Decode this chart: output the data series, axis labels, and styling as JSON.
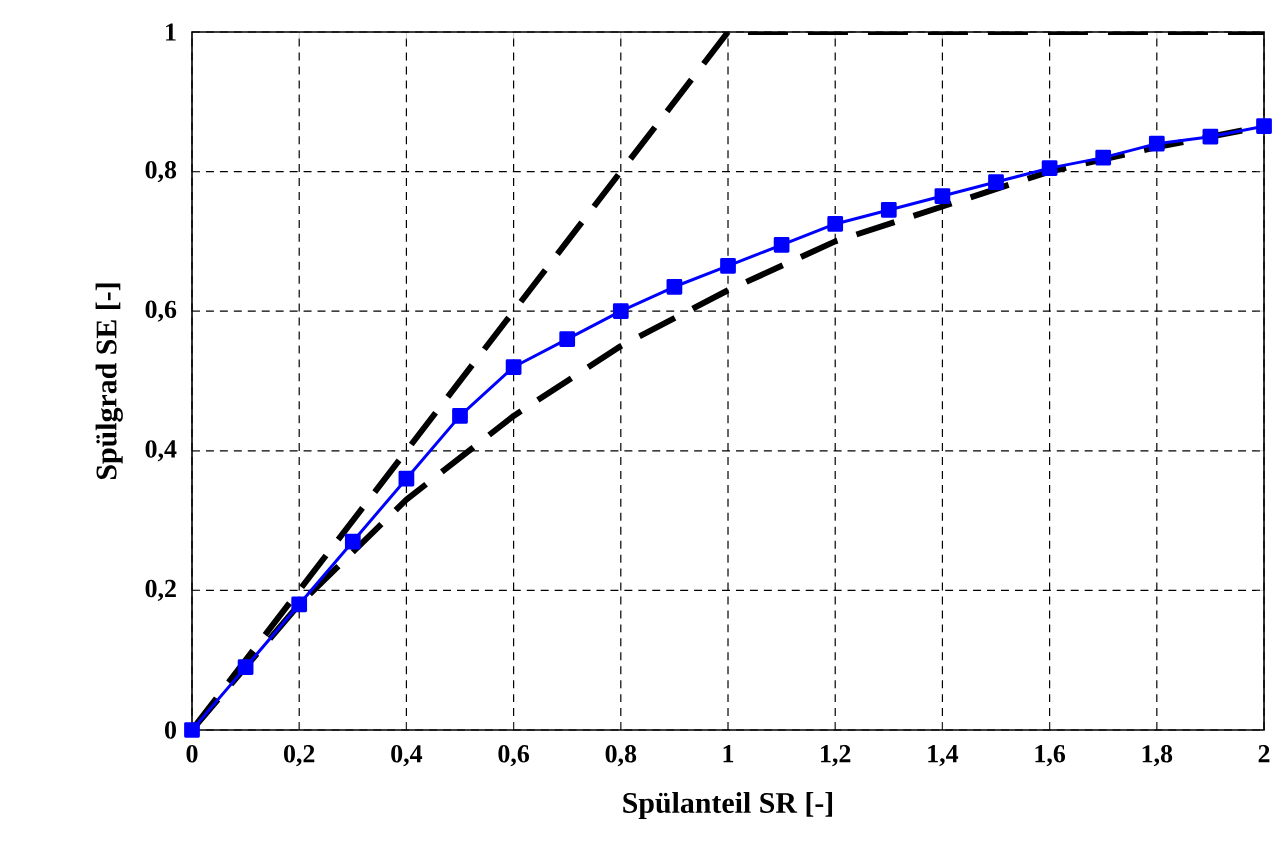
{
  "chart_data": {
    "type": "line",
    "xlabel": "Spülanteil SR [-]",
    "ylabel": "Spülgrad SE [-]",
    "xlim": [
      0,
      2
    ],
    "ylim": [
      0,
      1
    ],
    "xticks": [
      0,
      {
        "value": 0.2,
        "label": "0,2"
      },
      {
        "value": 0.4,
        "label": "0,4"
      },
      {
        "value": 0.6,
        "label": "0,6"
      },
      {
        "value": 0.8,
        "label": "0,8"
      },
      1,
      {
        "value": 1.2,
        "label": "1,2"
      },
      {
        "value": 1.4,
        "label": "1,4"
      },
      {
        "value": 1.6,
        "label": "1,6"
      },
      {
        "value": 1.8,
        "label": "1,8"
      },
      2
    ],
    "yticks": [
      0,
      {
        "value": 0.2,
        "label": "0,2"
      },
      {
        "value": 0.4,
        "label": "0,4"
      },
      {
        "value": 0.6,
        "label": "0,6"
      },
      {
        "value": 0.8,
        "label": "0,8"
      },
      1
    ],
    "grid": true,
    "series": [
      {
        "color": "#000000",
        "line_style": "dashed",
        "marker": "none",
        "x": [
          0,
          1,
          2
        ],
        "values": [
          0,
          1,
          1
        ]
      },
      {
        "color": "#000000",
        "line_style": "dashed",
        "marker": "none",
        "x": [
          0,
          0.2,
          0.4,
          0.6,
          0.8,
          1.0,
          1.2,
          1.4,
          1.6,
          1.8,
          2.0
        ],
        "values": [
          0,
          0.18,
          0.33,
          0.45,
          0.55,
          0.63,
          0.7,
          0.75,
          0.8,
          0.835,
          0.865
        ]
      },
      {
        "color": "#0000ff",
        "line_style": "solid",
        "marker": "square",
        "x": [
          0,
          0.1,
          0.2,
          0.3,
          0.4,
          0.5,
          0.6,
          0.7,
          0.8,
          0.9,
          1.0,
          1.1,
          1.2,
          1.3,
          1.4,
          1.5,
          1.6,
          1.7,
          1.8,
          1.9,
          2.0
        ],
        "values": [
          0,
          0.09,
          0.18,
          0.27,
          0.36,
          0.45,
          0.52,
          0.56,
          0.6,
          0.635,
          0.665,
          0.695,
          0.725,
          0.745,
          0.765,
          0.785,
          0.805,
          0.82,
          0.84,
          0.85,
          0.865
        ]
      }
    ]
  }
}
